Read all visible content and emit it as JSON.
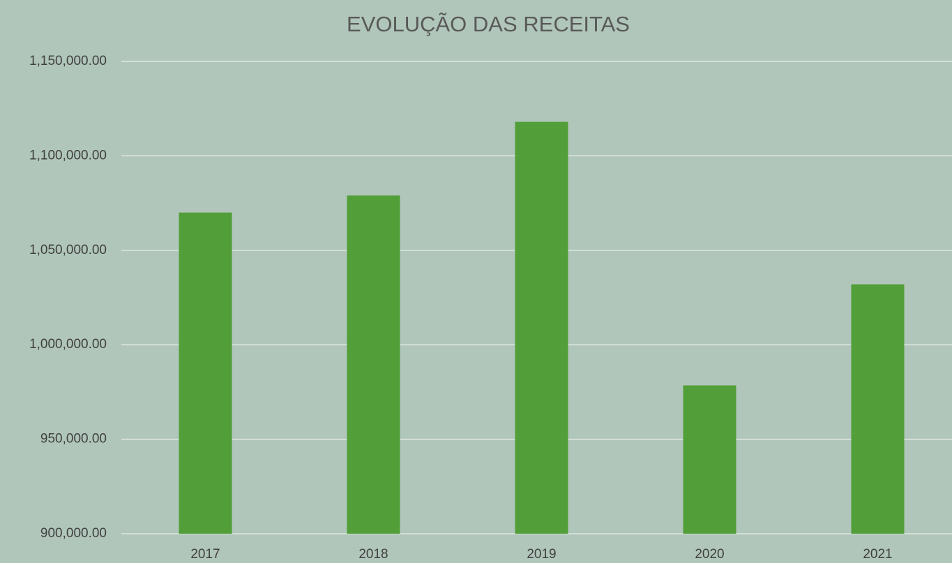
{
  "chart_data": {
    "type": "bar",
    "title": "EVOLUÇÃO DAS RECEITAS",
    "categories": [
      "2017",
      "2018",
      "2019",
      "2020",
      "2021"
    ],
    "values": [
      1070000,
      1079000,
      1118000,
      978500,
      1032000
    ],
    "color": "#529e38",
    "ylim": [
      900000,
      1150000
    ],
    "yticks": [
      {
        "value": 900000,
        "label": "900,000.00"
      },
      {
        "value": 950000,
        "label": "950,000.00"
      },
      {
        "value": 1000000,
        "label": "1,000,000.00"
      },
      {
        "value": 1050000,
        "label": "1,050,000.00"
      },
      {
        "value": 1100000,
        "label": "1,100,000.00"
      },
      {
        "value": 1150000,
        "label": "1,150,000.00"
      }
    ],
    "grid": true
  }
}
